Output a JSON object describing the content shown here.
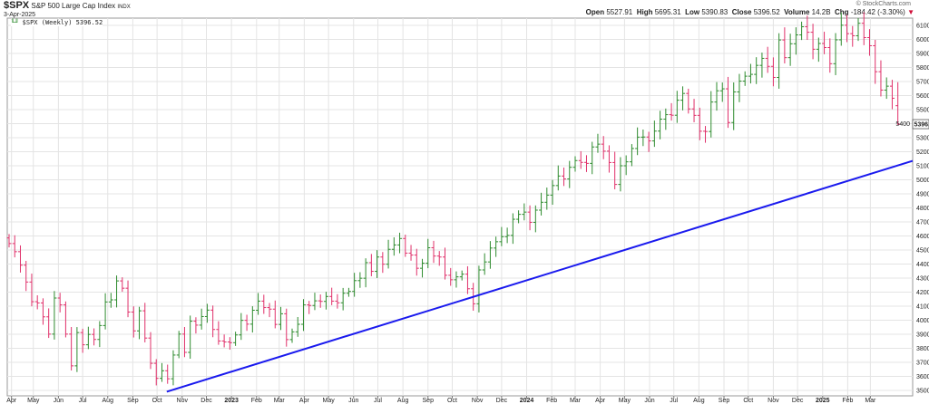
{
  "header": {
    "symbol": "$SPX",
    "name": "S&P 500 Large Cap Index",
    "exchange": "INDX",
    "date": "3-Apr-2025",
    "legend": "$SPX (Weekly) 5396.52",
    "copyright": "© StockCharts.com",
    "open_label": "Open",
    "open": "5527.91",
    "high_label": "High",
    "high": "5695.31",
    "low_label": "Low",
    "low": "5390.83",
    "close_label": "Close",
    "close": "5396.52",
    "volume_label": "Volume",
    "volume": "14.2B",
    "chg_label": "Chg",
    "chg": "-184.42 (-3.30%)"
  },
  "colors": {
    "up": "#2e8b2e",
    "down": "#e0306a",
    "trend": "#1a1aee",
    "grid": "#e4e4e4"
  },
  "chart_data": {
    "type": "ohlc",
    "title": "$SPX (Weekly)",
    "ylim": [
      3450,
      6150
    ],
    "yticks": [
      3500,
      3600,
      3700,
      3800,
      3900,
      4000,
      4100,
      4200,
      4300,
      4400,
      4500,
      4600,
      4700,
      4800,
      4900,
      5000,
      5100,
      5200,
      5300,
      5400,
      5500,
      5600,
      5700,
      5800,
      5900,
      6000,
      6100
    ],
    "last_price_label": "5396.52",
    "start_week": "2022-04-01",
    "weekly_close": [
      4546,
      4488,
      4392,
      4272,
      4132,
      4123,
      4024,
      3901,
      4158,
      4109,
      3901,
      3675,
      3912,
      3825,
      3899,
      3863,
      3962,
      4130,
      4145,
      4280,
      4228,
      4058,
      3924,
      4067,
      3873,
      3693,
      3586,
      3640,
      3583,
      3752,
      3901,
      3771,
      3993,
      3965,
      4026,
      4072,
      3934,
      3852,
      3845,
      3840,
      3895,
      3999,
      3972,
      4071,
      4136,
      4090,
      4079,
      3970,
      4046,
      3862,
      3917,
      3971,
      4109,
      4105,
      4138,
      4134,
      4169,
      4136,
      4124,
      4192,
      4205,
      4282,
      4299,
      4410,
      4348,
      4450,
      4399,
      4505,
      4536,
      4582,
      4478,
      4464,
      4370,
      4406,
      4516,
      4457,
      4450,
      4320,
      4288,
      4309,
      4328,
      4224,
      4117,
      4358,
      4415,
      4514,
      4559,
      4595,
      4604,
      4719,
      4754,
      4770,
      4697,
      4784,
      4840,
      4891,
      4959,
      5027,
      5006,
      5089,
      5137,
      5124,
      5117,
      5234,
      5254,
      5204,
      5123,
      4967,
      5100,
      5128,
      5223,
      5304,
      5305,
      5277,
      5347,
      5432,
      5464,
      5460,
      5567,
      5615,
      5505,
      5459,
      5346,
      5344,
      5554,
      5634,
      5648,
      5408,
      5626,
      5703,
      5738,
      5751,
      5815,
      5865,
      5808,
      5729,
      5996,
      5870,
      5969,
      6032,
      6090,
      6051,
      5930,
      5971,
      5942,
      5827,
      5997,
      6101,
      6041,
      6026,
      6115,
      6013,
      5955,
      5770,
      5639,
      5667,
      5581,
      5397
    ],
    "last_bar": {
      "open": 5527.91,
      "high": 5695.31,
      "low": 5390.83,
      "close": 5396.52
    },
    "trendline": {
      "from": [
        "2022-10-13",
        3491
      ],
      "to": [
        "2025-04-20",
        5135
      ]
    },
    "xticks": [
      {
        "d": "2022-04-04",
        "t": "Apr"
      },
      {
        "d": "2022-05-01",
        "t": "May"
      },
      {
        "d": "2022-06-01",
        "t": "Jun"
      },
      {
        "d": "2022-07-01",
        "t": "Jul"
      },
      {
        "d": "2022-08-01",
        "t": "Aug"
      },
      {
        "d": "2022-09-01",
        "t": "Sep"
      },
      {
        "d": "2022-10-01",
        "t": "Oct"
      },
      {
        "d": "2022-11-01",
        "t": "Nov"
      },
      {
        "d": "2022-12-01",
        "t": "Dec"
      },
      {
        "d": "2023-01-01",
        "t": "2023",
        "y": 1
      },
      {
        "d": "2023-02-01",
        "t": "Feb"
      },
      {
        "d": "2023-03-01",
        "t": "Mar"
      },
      {
        "d": "2023-04-01",
        "t": "Apr"
      },
      {
        "d": "2023-05-01",
        "t": "May"
      },
      {
        "d": "2023-06-01",
        "t": "Jun"
      },
      {
        "d": "2023-07-01",
        "t": "Jul"
      },
      {
        "d": "2023-08-01",
        "t": "Aug"
      },
      {
        "d": "2023-09-01",
        "t": "Sep"
      },
      {
        "d": "2023-10-01",
        "t": "Oct"
      },
      {
        "d": "2023-11-01",
        "t": "Nov"
      },
      {
        "d": "2023-12-01",
        "t": "Dec"
      },
      {
        "d": "2024-01-01",
        "t": "2024",
        "y": 1
      },
      {
        "d": "2024-02-01",
        "t": "Feb"
      },
      {
        "d": "2024-03-01",
        "t": "Mar"
      },
      {
        "d": "2024-04-01",
        "t": "Apr"
      },
      {
        "d": "2024-05-01",
        "t": "May"
      },
      {
        "d": "2024-06-01",
        "t": "Jun"
      },
      {
        "d": "2024-07-01",
        "t": "Jul"
      },
      {
        "d": "2024-08-01",
        "t": "Aug"
      },
      {
        "d": "2024-09-01",
        "t": "Sep"
      },
      {
        "d": "2024-10-01",
        "t": "Oct"
      },
      {
        "d": "2024-11-01",
        "t": "Nov"
      },
      {
        "d": "2024-12-01",
        "t": "Dec"
      },
      {
        "d": "2025-01-01",
        "t": "2025",
        "y": 1
      },
      {
        "d": "2025-02-01",
        "t": "Feb"
      },
      {
        "d": "2025-03-01",
        "t": "Mar"
      }
    ]
  }
}
